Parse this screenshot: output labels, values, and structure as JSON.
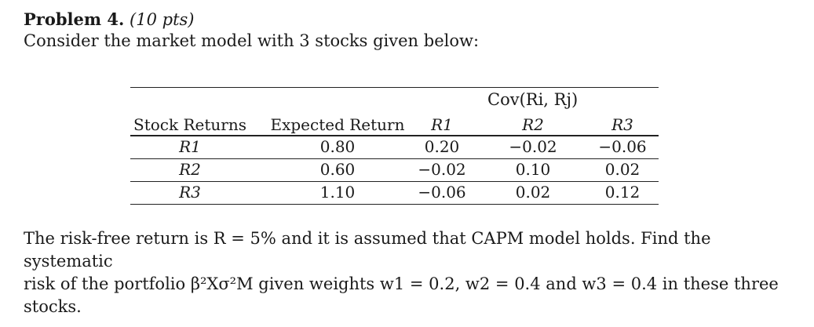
{
  "problem": {
    "label": "Problem 4.",
    "points": "(10 pts)",
    "intro": "Consider the market model with 3 stocks given below:"
  },
  "table": {
    "cov_header": "Cov(Ri, Rj)",
    "headers": [
      "Stock Returns",
      "Expected Return",
      "R1",
      "R2",
      "R3"
    ],
    "rows": [
      [
        "R1",
        "0.80",
        "0.20",
        "−0.02",
        "−0.06"
      ],
      [
        "R2",
        "0.60",
        "−0.02",
        "0.10",
        "0.02"
      ],
      [
        "R3",
        "1.10",
        "−0.06",
        "0.02",
        "0.12"
      ]
    ]
  },
  "question": {
    "line1": "The risk-free return is R = 5% and it is assumed that CAPM model holds. Find the systematic",
    "line2": "risk of the portfolio β²Xσ²M given weights w1 = 0.2, w2 = 0.4 and w3 = 0.4 in these three stocks."
  }
}
